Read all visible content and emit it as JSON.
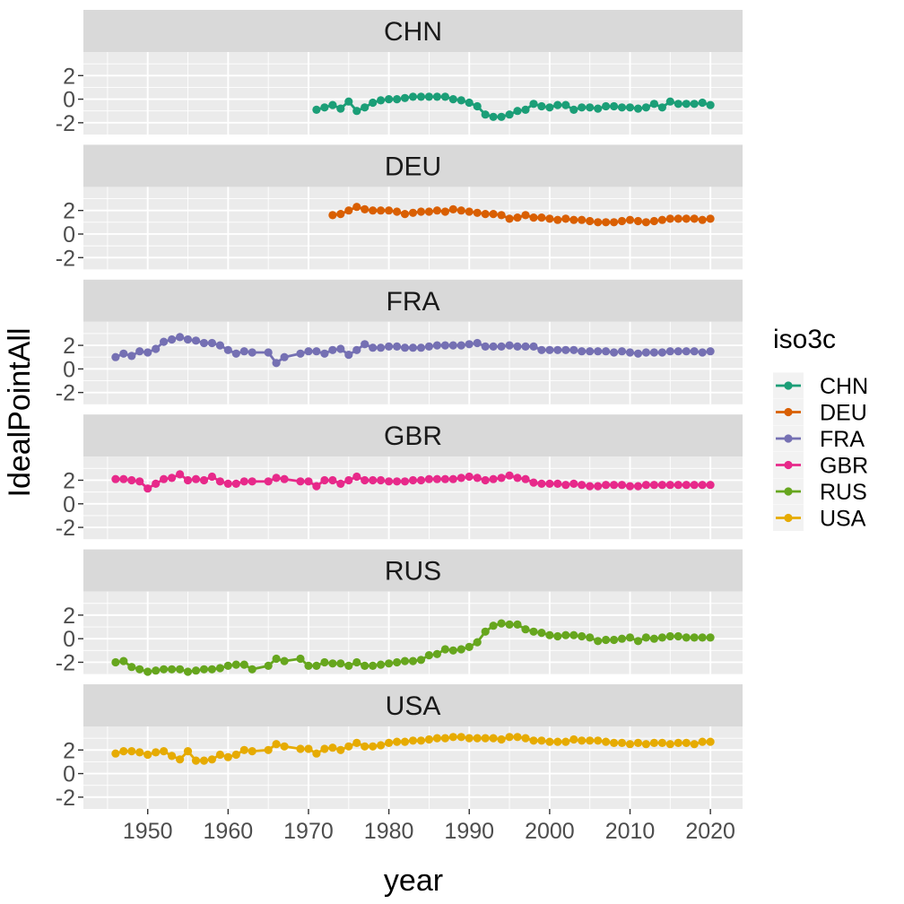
{
  "chart_data": {
    "type": "line",
    "layout": "facets-stacked",
    "xlabel": "year",
    "ylabel": "IdealPointAll",
    "xlim": [
      1942,
      2024
    ],
    "ylim": [
      -3,
      4
    ],
    "x_ticks": [
      1950,
      1960,
      1970,
      1980,
      1990,
      2000,
      2010,
      2020
    ],
    "y_ticks": [
      -2,
      0,
      2
    ],
    "y_tick_labels": [
      "-2",
      "0",
      "2"
    ],
    "grid": true,
    "markers": true,
    "legend": {
      "title": "iso3c",
      "position": "right",
      "entries": [
        "CHN",
        "DEU",
        "FRA",
        "GBR",
        "RUS",
        "USA"
      ]
    },
    "series": [
      {
        "name": "CHN",
        "color": "#1B9E77",
        "x": [
          1971,
          1972,
          1973,
          1974,
          1975,
          1976,
          1977,
          1978,
          1979,
          1980,
          1981,
          1982,
          1983,
          1984,
          1985,
          1986,
          1987,
          1988,
          1989,
          1990,
          1991,
          1992,
          1993,
          1994,
          1995,
          1996,
          1997,
          1998,
          1999,
          2000,
          2001,
          2002,
          2003,
          2004,
          2005,
          2006,
          2007,
          2008,
          2009,
          2010,
          2011,
          2012,
          2013,
          2014,
          2015,
          2016,
          2017,
          2018,
          2019,
          2020
        ],
        "y": [
          -0.9,
          -0.7,
          -0.5,
          -0.8,
          -0.2,
          -1.0,
          -0.7,
          -0.3,
          -0.1,
          0.0,
          0.0,
          0.1,
          0.2,
          0.2,
          0.2,
          0.2,
          0.2,
          0.0,
          -0.1,
          -0.3,
          -0.6,
          -1.3,
          -1.5,
          -1.5,
          -1.3,
          -1.0,
          -0.9,
          -0.4,
          -0.6,
          -0.7,
          -0.5,
          -0.5,
          -0.9,
          -0.7,
          -0.7,
          -0.8,
          -0.6,
          -0.6,
          -0.7,
          -0.7,
          -0.8,
          -0.7,
          -0.4,
          -0.7,
          -0.2,
          -0.4,
          -0.4,
          -0.4,
          -0.3,
          -0.5
        ]
      },
      {
        "name": "DEU",
        "color": "#D95F02",
        "x": [
          1973,
          1974,
          1975,
          1976,
          1977,
          1978,
          1979,
          1980,
          1981,
          1982,
          1983,
          1984,
          1985,
          1986,
          1987,
          1988,
          1989,
          1990,
          1991,
          1992,
          1993,
          1994,
          1995,
          1996,
          1997,
          1998,
          1999,
          2000,
          2001,
          2002,
          2003,
          2004,
          2005,
          2006,
          2007,
          2008,
          2009,
          2010,
          2011,
          2012,
          2013,
          2014,
          2015,
          2016,
          2017,
          2018,
          2019,
          2020
        ],
        "y": [
          1.6,
          1.7,
          2.0,
          2.3,
          2.1,
          2.0,
          2.0,
          2.0,
          1.9,
          1.7,
          1.8,
          1.9,
          1.9,
          2.0,
          1.9,
          2.1,
          2.0,
          1.9,
          1.8,
          1.7,
          1.7,
          1.6,
          1.3,
          1.4,
          1.6,
          1.4,
          1.4,
          1.3,
          1.2,
          1.3,
          1.2,
          1.2,
          1.1,
          1.0,
          1.0,
          1.0,
          1.1,
          1.2,
          1.1,
          1.0,
          1.1,
          1.2,
          1.3,
          1.3,
          1.3,
          1.3,
          1.2,
          1.3
        ]
      },
      {
        "name": "FRA",
        "color": "#7570B3",
        "x": [
          1946,
          1947,
          1948,
          1949,
          1950,
          1951,
          1952,
          1953,
          1954,
          1955,
          1956,
          1957,
          1958,
          1959,
          1960,
          1961,
          1962,
          1963,
          1965,
          1966,
          1967,
          1969,
          1970,
          1971,
          1972,
          1973,
          1974,
          1975,
          1976,
          1977,
          1978,
          1979,
          1980,
          1981,
          1982,
          1983,
          1984,
          1985,
          1986,
          1987,
          1988,
          1989,
          1990,
          1991,
          1992,
          1993,
          1994,
          1995,
          1996,
          1997,
          1998,
          1999,
          2000,
          2001,
          2002,
          2003,
          2004,
          2005,
          2006,
          2007,
          2008,
          2009,
          2010,
          2011,
          2012,
          2013,
          2014,
          2015,
          2016,
          2017,
          2018,
          2019,
          2020
        ],
        "y": [
          1.0,
          1.3,
          1.1,
          1.5,
          1.4,
          1.7,
          2.3,
          2.5,
          2.7,
          2.5,
          2.4,
          2.2,
          2.2,
          2.0,
          1.6,
          1.3,
          1.5,
          1.4,
          1.4,
          0.5,
          1.0,
          1.3,
          1.5,
          1.5,
          1.3,
          1.6,
          1.7,
          1.2,
          1.6,
          2.1,
          1.8,
          1.8,
          1.9,
          1.9,
          1.8,
          1.8,
          1.8,
          1.9,
          2.0,
          2.0,
          2.0,
          2.0,
          2.1,
          2.2,
          1.9,
          1.9,
          1.9,
          2.0,
          1.9,
          1.9,
          1.9,
          1.6,
          1.6,
          1.6,
          1.6,
          1.6,
          1.5,
          1.5,
          1.5,
          1.5,
          1.4,
          1.5,
          1.4,
          1.3,
          1.4,
          1.4,
          1.4,
          1.5,
          1.5,
          1.5,
          1.5,
          1.4,
          1.5
        ]
      },
      {
        "name": "GBR",
        "color": "#E7298A",
        "x": [
          1946,
          1947,
          1948,
          1949,
          1950,
          1951,
          1952,
          1953,
          1954,
          1955,
          1956,
          1957,
          1958,
          1959,
          1960,
          1961,
          1962,
          1963,
          1965,
          1966,
          1967,
          1969,
          1970,
          1971,
          1972,
          1973,
          1974,
          1975,
          1976,
          1977,
          1978,
          1979,
          1980,
          1981,
          1982,
          1983,
          1984,
          1985,
          1986,
          1987,
          1988,
          1989,
          1990,
          1991,
          1992,
          1993,
          1994,
          1995,
          1996,
          1997,
          1998,
          1999,
          2000,
          2001,
          2002,
          2003,
          2004,
          2005,
          2006,
          2007,
          2008,
          2009,
          2010,
          2011,
          2012,
          2013,
          2014,
          2015,
          2016,
          2017,
          2018,
          2019,
          2020
        ],
        "y": [
          2.1,
          2.1,
          2.0,
          1.9,
          1.3,
          1.7,
          2.1,
          2.2,
          2.5,
          2.0,
          2.1,
          2.0,
          2.3,
          1.9,
          1.7,
          1.7,
          1.9,
          1.9,
          1.9,
          2.2,
          2.1,
          1.9,
          1.9,
          1.5,
          2.0,
          2.0,
          1.7,
          2.0,
          2.3,
          2.0,
          2.0,
          2.0,
          1.9,
          1.9,
          1.9,
          2.0,
          2.0,
          2.1,
          2.1,
          2.1,
          2.1,
          2.2,
          2.3,
          2.2,
          2.0,
          2.1,
          2.2,
          2.4,
          2.2,
          2.1,
          1.8,
          1.7,
          1.7,
          1.7,
          1.6,
          1.7,
          1.6,
          1.5,
          1.5,
          1.6,
          1.6,
          1.6,
          1.5,
          1.5,
          1.6,
          1.6,
          1.6,
          1.6,
          1.6,
          1.6,
          1.6,
          1.6,
          1.6
        ]
      },
      {
        "name": "RUS",
        "color": "#66A61E",
        "x": [
          1946,
          1947,
          1948,
          1949,
          1950,
          1951,
          1952,
          1953,
          1954,
          1955,
          1956,
          1957,
          1958,
          1959,
          1960,
          1961,
          1962,
          1963,
          1965,
          1966,
          1967,
          1969,
          1970,
          1971,
          1972,
          1973,
          1974,
          1975,
          1976,
          1977,
          1978,
          1979,
          1980,
          1981,
          1982,
          1983,
          1984,
          1985,
          1986,
          1987,
          1988,
          1989,
          1990,
          1991,
          1992,
          1993,
          1994,
          1995,
          1996,
          1997,
          1998,
          1999,
          2000,
          2001,
          2002,
          2003,
          2004,
          2005,
          2006,
          2007,
          2008,
          2009,
          2010,
          2011,
          2012,
          2013,
          2014,
          2015,
          2016,
          2017,
          2018,
          2019,
          2020
        ],
        "y": [
          -2.0,
          -1.9,
          -2.4,
          -2.6,
          -2.8,
          -2.7,
          -2.6,
          -2.6,
          -2.6,
          -2.8,
          -2.7,
          -2.6,
          -2.6,
          -2.5,
          -2.3,
          -2.2,
          -2.2,
          -2.6,
          -2.3,
          -1.7,
          -1.9,
          -1.7,
          -2.3,
          -2.3,
          -2.0,
          -2.1,
          -2.1,
          -2.3,
          -2.0,
          -2.3,
          -2.3,
          -2.2,
          -2.1,
          -2.0,
          -1.9,
          -1.9,
          -1.8,
          -1.4,
          -1.3,
          -0.9,
          -1.0,
          -0.9,
          -0.7,
          -0.3,
          0.6,
          1.1,
          1.3,
          1.2,
          1.2,
          0.8,
          0.6,
          0.5,
          0.3,
          0.2,
          0.3,
          0.3,
          0.2,
          0.1,
          -0.2,
          -0.1,
          -0.1,
          0.0,
          0.1,
          -0.2,
          0.1,
          0.0,
          0.1,
          0.2,
          0.2,
          0.1,
          0.1,
          0.1,
          0.1
        ]
      },
      {
        "name": "USA",
        "color": "#E6AB02",
        "x": [
          1946,
          1947,
          1948,
          1949,
          1950,
          1951,
          1952,
          1953,
          1954,
          1955,
          1956,
          1957,
          1958,
          1959,
          1960,
          1961,
          1962,
          1963,
          1965,
          1966,
          1967,
          1969,
          1970,
          1971,
          1972,
          1973,
          1974,
          1975,
          1976,
          1977,
          1978,
          1979,
          1980,
          1981,
          1982,
          1983,
          1984,
          1985,
          1986,
          1987,
          1988,
          1989,
          1990,
          1991,
          1992,
          1993,
          1994,
          1995,
          1996,
          1997,
          1998,
          1999,
          2000,
          2001,
          2002,
          2003,
          2004,
          2005,
          2006,
          2007,
          2008,
          2009,
          2010,
          2011,
          2012,
          2013,
          2014,
          2015,
          2016,
          2017,
          2018,
          2019,
          2020
        ],
        "y": [
          1.7,
          1.9,
          1.9,
          1.8,
          1.6,
          1.8,
          1.9,
          1.5,
          1.2,
          1.9,
          1.1,
          1.1,
          1.2,
          1.6,
          1.4,
          1.6,
          2.0,
          1.9,
          2.0,
          2.5,
          2.3,
          2.1,
          2.1,
          1.7,
          2.1,
          2.2,
          2.0,
          2.3,
          2.6,
          2.3,
          2.3,
          2.4,
          2.6,
          2.7,
          2.7,
          2.8,
          2.8,
          2.9,
          3.0,
          3.0,
          3.1,
          3.1,
          3.0,
          3.0,
          3.0,
          3.0,
          2.9,
          3.1,
          3.1,
          3.0,
          2.8,
          2.8,
          2.7,
          2.7,
          2.7,
          2.9,
          2.8,
          2.8,
          2.8,
          2.7,
          2.6,
          2.6,
          2.5,
          2.6,
          2.5,
          2.6,
          2.6,
          2.5,
          2.6,
          2.6,
          2.5,
          2.7,
          2.7
        ]
      }
    ]
  }
}
